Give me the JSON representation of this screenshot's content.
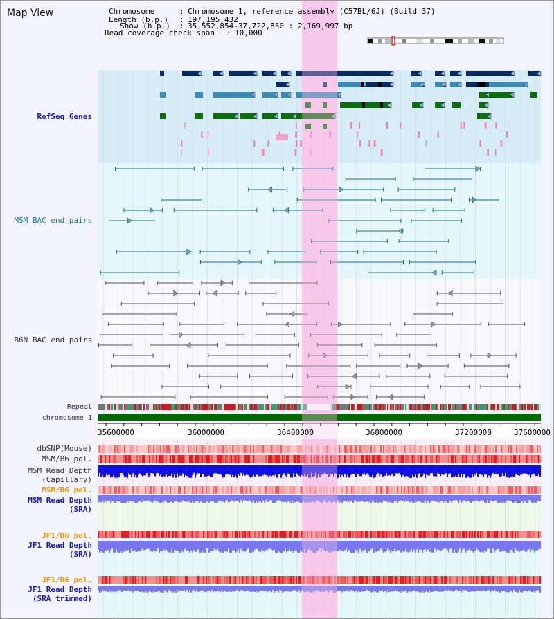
{
  "title": "Map View",
  "info": {
    "chromosome_key": "Chromosome    ",
    "chromosome_val": "Chromosome 1, reference assembly (C57BL/6J) (Build 37)",
    "length_key": "Length (b.p.)",
    "length_val": "197,195,432",
    "show_key": "Show (b.p.)",
    "show_val": "35,552,854-37,722,850 : 2,169,997 bp",
    "span_key": "Read coverage check span",
    "span_val": "10,000"
  },
  "tracks": {
    "refseq": "RefSeq Genes",
    "msm_bac": "MSM BAC end pairs",
    "b6n_bac": "B6N BAC end pairs",
    "repeat": "Repeat",
    "chromosome": "chromosome 1",
    "dbsnp": "dbSNP(Mouse)",
    "msm_b6_pol_1": "MSM/B6 pol.",
    "msm_depth_cap_1": "MSM Read Depth",
    "msm_depth_cap_2": "(Capillary)",
    "msm_b6_pol_2": "MSM/B6 pol.",
    "msm_depth_sra_1": "MSM Read Depth",
    "msm_depth_sra_2": "(SRA)",
    "jf1_b6_pol_1": "JF1/B6 pol.",
    "jf1_depth_sra_1": "JF1 Read Depth",
    "jf1_depth_sra_2": "(SRA)",
    "jf1_b6_pol_2": "JF1/B6 pol.",
    "jf1_depth_trim_1": "JF1 Read Depth",
    "jf1_depth_trim_2": "(SRA trimmed)"
  },
  "axis": {
    "ticks": [
      "35600000",
      "36000000",
      "36400000",
      "36800000",
      "37200000",
      "37600000"
    ]
  },
  "colors": {
    "refseq_bg": "#d6edf8",
    "gene_dark": "#0a2a66",
    "gene_mid": "#3a8ab8",
    "gene_green": "#0b6e0b",
    "bac_teal": "#1a6a8a",
    "bac_gray": "#555555",
    "highlight": "#f8c8ec",
    "chromosome": "#006a00",
    "depth_blue": "#1010e0",
    "depth_light": "#7878f0"
  }
}
